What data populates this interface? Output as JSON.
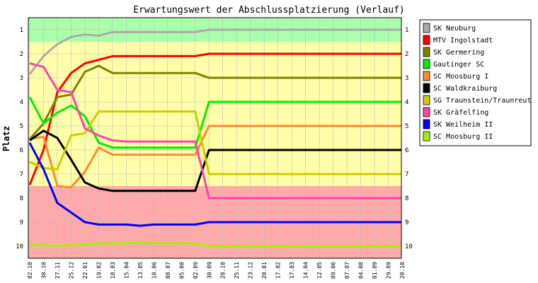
{
  "chart_data": {
    "type": "line",
    "title": "Erwartungswert der Abschlussplatzierung (Verlauf)",
    "ylabel": "Platz",
    "xlabel": "",
    "ylim": [
      1,
      10
    ],
    "y_inverted": true,
    "y_ticks": [
      "1",
      "2",
      "3",
      "4",
      "5",
      "6",
      "7",
      "8",
      "9",
      "10"
    ],
    "categories": [
      "02.10",
      "30.10",
      "27.11",
      "25.12",
      "22.01",
      "19.02",
      "18.03",
      "15.04",
      "13.05",
      "10.06",
      "08.07",
      "05.08",
      "02.09",
      "30.09",
      "28.10",
      "25.11",
      "23.12",
      "20.01",
      "17.02",
      "17.03",
      "14.04",
      "12.05",
      "09.06",
      "07.07",
      "04.08",
      "01.09",
      "29.09",
      "20.10"
    ],
    "zones": [
      {
        "from": 0.5,
        "to": 1.5,
        "color": "#aaffaa"
      },
      {
        "from": 1.5,
        "to": 7.5,
        "color": "#ffffaa"
      },
      {
        "from": 7.5,
        "to": 10.5,
        "color": "#ffaaaa"
      }
    ],
    "grid": true,
    "legend_position": "right",
    "series": [
      {
        "name": "SK Neuburg",
        "color": "#aaaaaa",
        "values": [
          2.85,
          2.1,
          1.6,
          1.3,
          1.2,
          1.25,
          1.1,
          1.1,
          1.1,
          1.1,
          1.1,
          1.1,
          1.1,
          1.0,
          1.0,
          1.0,
          1.0,
          1.0,
          1.0,
          1.0,
          1.0,
          1.0,
          1.0,
          1.0,
          1.0,
          1.0,
          1.0,
          1.0
        ]
      },
      {
        "name": "MTV Ingolstadt",
        "color": "#ff0000",
        "values": [
          7.45,
          6.0,
          3.6,
          2.8,
          2.4,
          2.25,
          2.1,
          2.1,
          2.1,
          2.1,
          2.1,
          2.1,
          2.1,
          2.0,
          2.0,
          2.0,
          2.0,
          2.0,
          2.0,
          2.0,
          2.0,
          2.0,
          2.0,
          2.0,
          2.0,
          2.0,
          2.0,
          2.0
        ]
      },
      {
        "name": "SK Germering",
        "color": "#808000",
        "values": [
          5.55,
          4.9,
          3.8,
          3.7,
          2.75,
          2.5,
          2.8,
          2.8,
          2.8,
          2.8,
          2.8,
          2.8,
          2.8,
          3.0,
          3.0,
          3.0,
          3.0,
          3.0,
          3.0,
          3.0,
          3.0,
          3.0,
          3.0,
          3.0,
          3.0,
          3.0,
          3.0,
          3.0
        ]
      },
      {
        "name": "Gautinger SC",
        "color": "#00ee00",
        "values": [
          3.8,
          4.9,
          4.45,
          4.15,
          4.6,
          5.7,
          5.9,
          5.9,
          5.9,
          5.9,
          5.9,
          5.9,
          5.9,
          4.0,
          4.0,
          4.0,
          4.0,
          4.0,
          4.0,
          4.0,
          4.0,
          4.0,
          4.0,
          4.0,
          4.0,
          4.0,
          4.0,
          4.0
        ]
      },
      {
        "name": "SC Moosburg I",
        "color": "#ff8833",
        "values": [
          5.55,
          5.45,
          7.5,
          7.55,
          6.9,
          5.9,
          6.2,
          6.2,
          6.2,
          6.2,
          6.2,
          6.2,
          6.2,
          5.0,
          5.0,
          5.0,
          5.0,
          5.0,
          5.0,
          5.0,
          5.0,
          5.0,
          5.0,
          5.0,
          5.0,
          5.0,
          5.0,
          5.0
        ]
      },
      {
        "name": "SC Waldkraiburg",
        "color": "#000000",
        "values": [
          5.6,
          5.2,
          5.5,
          6.4,
          7.35,
          7.6,
          7.7,
          7.7,
          7.7,
          7.7,
          7.7,
          7.7,
          7.7,
          6.0,
          6.0,
          6.0,
          6.0,
          6.0,
          6.0,
          6.0,
          6.0,
          6.0,
          6.0,
          6.0,
          6.0,
          6.0,
          6.0,
          6.0
        ]
      },
      {
        "name": "SG Traunstein/Traunreut",
        "color": "#cccc00",
        "values": [
          6.5,
          6.75,
          6.8,
          5.4,
          5.3,
          4.4,
          4.4,
          4.4,
          4.4,
          4.4,
          4.4,
          4.4,
          4.4,
          7.0,
          7.0,
          7.0,
          7.0,
          7.0,
          7.0,
          7.0,
          7.0,
          7.0,
          7.0,
          7.0,
          7.0,
          7.0,
          7.0,
          7.0
        ]
      },
      {
        "name": "SK Gräfelfing",
        "color": "#ff44aa",
        "values": [
          2.4,
          2.55,
          3.5,
          3.6,
          5.1,
          5.4,
          5.6,
          5.65,
          5.65,
          5.65,
          5.65,
          5.65,
          5.65,
          8.0,
          8.0,
          8.0,
          8.0,
          8.0,
          8.0,
          8.0,
          8.0,
          8.0,
          8.0,
          8.0,
          8.0,
          8.0,
          8.0,
          8.0
        ]
      },
      {
        "name": "SK Weilheim II",
        "color": "#0000ff",
        "values": [
          5.7,
          6.8,
          8.2,
          8.6,
          9.0,
          9.1,
          9.1,
          9.1,
          9.15,
          9.1,
          9.1,
          9.1,
          9.1,
          9.0,
          9.0,
          9.0,
          9.0,
          9.0,
          9.0,
          9.0,
          9.0,
          9.0,
          9.0,
          9.0,
          9.0,
          9.0,
          9.0,
          9.0
        ]
      },
      {
        "name": "SC Moosburg II",
        "color": "#aaee00",
        "values": [
          9.95,
          9.95,
          9.98,
          9.95,
          9.92,
          9.88,
          9.88,
          9.88,
          9.85,
          9.88,
          9.88,
          9.88,
          9.9,
          10.0,
          10.0,
          10.0,
          10.0,
          10.0,
          10.0,
          10.0,
          10.0,
          10.0,
          10.0,
          10.0,
          10.0,
          10.0,
          10.0,
          10.0
        ]
      }
    ]
  }
}
